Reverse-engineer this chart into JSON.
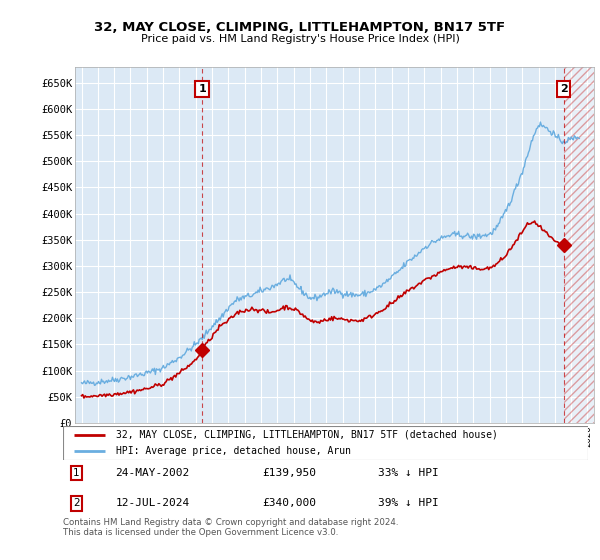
{
  "title": "32, MAY CLOSE, CLIMPING, LITTLEHAMPTON, BN17 5TF",
  "subtitle": "Price paid vs. HM Land Registry's House Price Index (HPI)",
  "ylabel_ticks": [
    "£0",
    "£50K",
    "£100K",
    "£150K",
    "£200K",
    "£250K",
    "£300K",
    "£350K",
    "£400K",
    "£450K",
    "£500K",
    "£550K",
    "£600K",
    "£650K"
  ],
  "ylim": [
    0,
    680000
  ],
  "ytick_vals": [
    0,
    50000,
    100000,
    150000,
    200000,
    250000,
    300000,
    350000,
    400000,
    450000,
    500000,
    550000,
    600000,
    650000
  ],
  "xlim_start": 1994.6,
  "xlim_end": 2026.4,
  "plot_bg_color": "#dce9f5",
  "grid_color": "#ffffff",
  "hpi_color": "#6aaee0",
  "price_color": "#c00000",
  "sale1_x": 2002.39,
  "sale1_y": 139950,
  "sale2_x": 2024.54,
  "sale2_y": 340000,
  "legend_label1": "32, MAY CLOSE, CLIMPING, LITTLEHAMPTON, BN17 5TF (detached house)",
  "legend_label2": "HPI: Average price, detached house, Arun",
  "annotation1_date": "24-MAY-2002",
  "annotation1_price": "£139,950",
  "annotation1_hpi": "33% ↓ HPI",
  "annotation2_date": "12-JUL-2024",
  "annotation2_price": "£340,000",
  "annotation2_hpi": "39% ↓ HPI",
  "footer": "Contains HM Land Registry data © Crown copyright and database right 2024.\nThis data is licensed under the Open Government Licence v3.0.",
  "future_start_x": 2024.54,
  "hpi_anchors": [
    [
      1995.0,
      75000
    ],
    [
      1996.0,
      78000
    ],
    [
      1997.0,
      82000
    ],
    [
      1998.0,
      88000
    ],
    [
      1999.0,
      95000
    ],
    [
      2000.0,
      105000
    ],
    [
      2001.0,
      125000
    ],
    [
      2002.0,
      150000
    ],
    [
      2002.5,
      165000
    ],
    [
      2003.0,
      185000
    ],
    [
      2003.5,
      200000
    ],
    [
      2004.0,
      220000
    ],
    [
      2004.5,
      235000
    ],
    [
      2005.0,
      240000
    ],
    [
      2005.5,
      245000
    ],
    [
      2006.0,
      252000
    ],
    [
      2006.5,
      258000
    ],
    [
      2007.0,
      265000
    ],
    [
      2007.5,
      275000
    ],
    [
      2008.0,
      268000
    ],
    [
      2008.5,
      252000
    ],
    [
      2009.0,
      238000
    ],
    [
      2009.5,
      240000
    ],
    [
      2010.0,
      248000
    ],
    [
      2010.5,
      252000
    ],
    [
      2011.0,
      248000
    ],
    [
      2011.5,
      245000
    ],
    [
      2012.0,
      244000
    ],
    [
      2012.5,
      248000
    ],
    [
      2013.0,
      255000
    ],
    [
      2013.5,
      265000
    ],
    [
      2014.0,
      278000
    ],
    [
      2014.5,
      292000
    ],
    [
      2015.0,
      308000
    ],
    [
      2015.5,
      320000
    ],
    [
      2016.0,
      335000
    ],
    [
      2016.5,
      345000
    ],
    [
      2017.0,
      352000
    ],
    [
      2017.5,
      358000
    ],
    [
      2018.0,
      360000
    ],
    [
      2018.5,
      358000
    ],
    [
      2019.0,
      355000
    ],
    [
      2019.5,
      358000
    ],
    [
      2020.0,
      360000
    ],
    [
      2020.5,
      375000
    ],
    [
      2021.0,
      405000
    ],
    [
      2021.5,
      440000
    ],
    [
      2022.0,
      480000
    ],
    [
      2022.3,
      510000
    ],
    [
      2022.6,
      540000
    ],
    [
      2022.9,
      565000
    ],
    [
      2023.0,
      570000
    ],
    [
      2023.3,
      568000
    ],
    [
      2023.6,
      560000
    ],
    [
      2023.9,
      555000
    ],
    [
      2024.0,
      548000
    ],
    [
      2024.3,
      540000
    ],
    [
      2024.54,
      538000
    ],
    [
      2025.0,
      542000
    ],
    [
      2025.5,
      548000
    ]
  ],
  "price_anchors": [
    [
      1995.0,
      50000
    ],
    [
      1996.0,
      52000
    ],
    [
      1997.0,
      55000
    ],
    [
      1998.0,
      59000
    ],
    [
      1999.0,
      65000
    ],
    [
      2000.0,
      75000
    ],
    [
      2001.0,
      95000
    ],
    [
      2002.0,
      120000
    ],
    [
      2002.39,
      139950
    ],
    [
      2003.0,
      165000
    ],
    [
      2003.5,
      185000
    ],
    [
      2004.0,
      195000
    ],
    [
      2004.5,
      210000
    ],
    [
      2005.0,
      215000
    ],
    [
      2005.5,
      218000
    ],
    [
      2006.0,
      215000
    ],
    [
      2006.5,
      210000
    ],
    [
      2007.0,
      215000
    ],
    [
      2007.5,
      222000
    ],
    [
      2008.0,
      218000
    ],
    [
      2008.5,
      208000
    ],
    [
      2009.0,
      195000
    ],
    [
      2009.5,
      192000
    ],
    [
      2010.0,
      198000
    ],
    [
      2010.5,
      200000
    ],
    [
      2011.0,
      198000
    ],
    [
      2011.5,
      196000
    ],
    [
      2012.0,
      195000
    ],
    [
      2012.5,
      200000
    ],
    [
      2013.0,
      208000
    ],
    [
      2013.5,
      218000
    ],
    [
      2014.0,
      228000
    ],
    [
      2014.5,
      240000
    ],
    [
      2015.0,
      252000
    ],
    [
      2015.5,
      262000
    ],
    [
      2016.0,
      272000
    ],
    [
      2016.5,
      280000
    ],
    [
      2017.0,
      288000
    ],
    [
      2017.5,
      295000
    ],
    [
      2018.0,
      298000
    ],
    [
      2018.5,
      298000
    ],
    [
      2019.0,
      295000
    ],
    [
      2019.5,
      295000
    ],
    [
      2020.0,
      295000
    ],
    [
      2020.5,
      305000
    ],
    [
      2021.0,
      320000
    ],
    [
      2021.5,
      342000
    ],
    [
      2022.0,
      365000
    ],
    [
      2022.3,
      378000
    ],
    [
      2022.6,
      385000
    ],
    [
      2022.9,
      380000
    ],
    [
      2023.0,
      375000
    ],
    [
      2023.3,
      368000
    ],
    [
      2023.6,
      358000
    ],
    [
      2023.9,
      350000
    ],
    [
      2024.0,
      345000
    ],
    [
      2024.3,
      342000
    ],
    [
      2024.54,
      340000
    ]
  ]
}
